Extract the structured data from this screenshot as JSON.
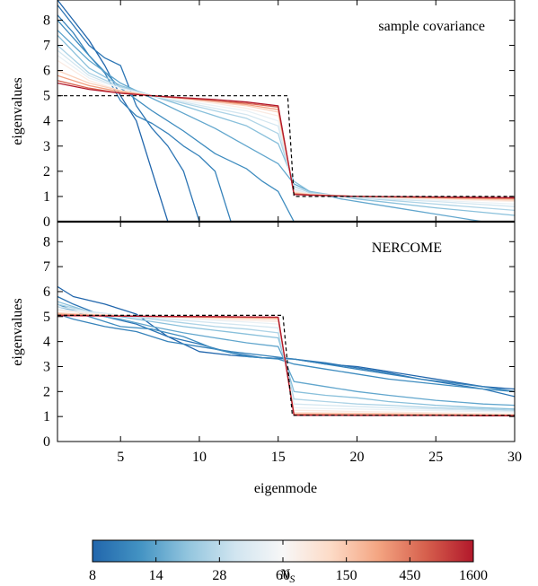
{
  "chart_data": [
    {
      "type": "line",
      "panel": "top",
      "annotation": "sample covariance",
      "ylabel": "eigenvalues",
      "xlim": [
        1,
        30
      ],
      "ylim": [
        0,
        8.8
      ],
      "yticks": [
        0,
        1,
        2,
        3,
        4,
        5,
        6,
        7,
        8
      ],
      "reference": {
        "name": "true",
        "x": [
          1,
          15.6,
          15.6,
          16,
          16,
          30
        ],
        "y": [
          5,
          5,
          5,
          1,
          1,
          1
        ]
      },
      "series": [
        {
          "ns": 8,
          "x": [
            1,
            2,
            3,
            4,
            5,
            6,
            7,
            8
          ],
          "y": [
            8.8,
            8.0,
            7.2,
            6.2,
            5.0,
            4.0,
            2.0,
            0.0
          ]
        },
        {
          "ns": 10,
          "x": [
            1,
            2,
            3,
            4,
            5,
            6,
            7,
            8,
            9,
            10
          ],
          "y": [
            8.6,
            7.8,
            7.0,
            6.5,
            6.2,
            4.6,
            3.7,
            3.0,
            2.0,
            0.0
          ]
        },
        {
          "ns": 12,
          "x": [
            1,
            2,
            3,
            4,
            5,
            6,
            7,
            8,
            9,
            10,
            11,
            12
          ],
          "y": [
            8.2,
            7.5,
            6.6,
            5.9,
            4.8,
            4.2,
            3.9,
            3.5,
            3.0,
            2.6,
            2.0,
            0.0
          ]
        },
        {
          "ns": 14,
          "x": [
            1,
            3,
            5,
            7,
            9,
            11,
            13,
            14,
            15,
            16
          ],
          "y": [
            8.0,
            6.6,
            5.3,
            4.4,
            3.6,
            2.7,
            2.1,
            1.6,
            1.2,
            0.0
          ]
        },
        {
          "ns": 20,
          "x": [
            1,
            3,
            5,
            7,
            9,
            11,
            13,
            15,
            16,
            17,
            19,
            22,
            25,
            28
          ],
          "y": [
            7.6,
            6.4,
            5.5,
            4.9,
            4.3,
            3.7,
            3.0,
            2.3,
            1.5,
            1.2,
            0.9,
            0.6,
            0.3,
            0.0
          ]
        },
        {
          "ns": 28,
          "x": [
            1,
            3,
            5,
            7,
            9,
            11,
            13,
            15,
            16,
            17,
            20,
            25,
            30
          ],
          "y": [
            7.4,
            6.1,
            5.4,
            5.0,
            4.6,
            4.2,
            3.8,
            3.1,
            1.6,
            1.2,
            0.9,
            0.55,
            0.25
          ]
        },
        {
          "ns": 40,
          "x": [
            1,
            3,
            5,
            7,
            9,
            11,
            13,
            15,
            16,
            17,
            20,
            25,
            30
          ],
          "y": [
            7.0,
            5.9,
            5.35,
            5.0,
            4.7,
            4.4,
            4.1,
            3.5,
            1.4,
            1.15,
            0.95,
            0.7,
            0.45
          ]
        },
        {
          "ns": 60,
          "x": [
            1,
            3,
            5,
            7,
            9,
            11,
            13,
            15,
            16,
            17,
            20,
            25,
            30
          ],
          "y": [
            6.8,
            5.8,
            5.3,
            5.0,
            4.75,
            4.5,
            4.25,
            3.8,
            1.3,
            1.1,
            0.95,
            0.8,
            0.6
          ]
        },
        {
          "ns": 90,
          "x": [
            1,
            3,
            5,
            7,
            9,
            11,
            13,
            15,
            16,
            17,
            20,
            25,
            30
          ],
          "y": [
            6.6,
            5.7,
            5.3,
            5.0,
            4.8,
            4.6,
            4.4,
            4.0,
            1.25,
            1.1,
            1.0,
            0.85,
            0.7
          ]
        },
        {
          "ns": 150,
          "x": [
            1,
            3,
            5,
            7,
            9,
            11,
            13,
            15,
            16,
            17,
            20,
            25,
            30
          ],
          "y": [
            6.4,
            5.6,
            5.2,
            5.0,
            4.85,
            4.7,
            4.5,
            4.2,
            1.2,
            1.1,
            1.0,
            0.9,
            0.8
          ]
        },
        {
          "ns": 250,
          "x": [
            1,
            3,
            5,
            7,
            9,
            11,
            13,
            15,
            16,
            17,
            20,
            25,
            30
          ],
          "y": [
            6.0,
            5.5,
            5.2,
            5.0,
            4.9,
            4.75,
            4.6,
            4.35,
            1.15,
            1.08,
            1.0,
            0.93,
            0.85
          ]
        },
        {
          "ns": 450,
          "x": [
            1,
            3,
            5,
            7,
            9,
            11,
            13,
            15,
            16,
            17,
            20,
            25,
            30
          ],
          "y": [
            5.8,
            5.4,
            5.15,
            5.0,
            4.9,
            4.8,
            4.65,
            4.45,
            1.12,
            1.07,
            1.0,
            0.95,
            0.9
          ]
        },
        {
          "ns": 800,
          "x": [
            1,
            3,
            5,
            7,
            9,
            11,
            13,
            15,
            16,
            17,
            20,
            25,
            30
          ],
          "y": [
            5.6,
            5.3,
            5.1,
            5.0,
            4.9,
            4.8,
            4.7,
            4.55,
            1.1,
            1.06,
            1.0,
            0.97,
            0.93
          ]
        },
        {
          "ns": 1600,
          "x": [
            1,
            3,
            5,
            7,
            9,
            11,
            13,
            15,
            16,
            17,
            20,
            25,
            30
          ],
          "y": [
            5.5,
            5.25,
            5.1,
            5.0,
            4.92,
            4.85,
            4.75,
            4.6,
            1.08,
            1.05,
            1.0,
            0.98,
            0.95
          ]
        }
      ]
    },
    {
      "type": "line",
      "panel": "bottom",
      "annotation": "NERCOME",
      "xlabel": "eigenmode",
      "ylabel": "eigenvalues",
      "xlim": [
        1,
        30
      ],
      "ylim": [
        0,
        8.8
      ],
      "xticks": [
        5,
        10,
        15,
        20,
        25,
        30
      ],
      "yticks": [
        0,
        1,
        2,
        3,
        4,
        5,
        6,
        7,
        8
      ],
      "reference": {
        "name": "true",
        "x": [
          1,
          15.3,
          15.3,
          15.9,
          15.9,
          30
        ],
        "y": [
          5.05,
          5.05,
          5.05,
          1.05,
          1.05,
          1.05
        ]
      },
      "series": [
        {
          "ns": 8,
          "x": [
            1,
            2,
            4,
            6,
            8,
            10,
            12,
            14,
            16,
            18,
            20,
            22,
            24,
            26,
            28,
            30
          ],
          "y": [
            6.2,
            5.8,
            5.5,
            5.1,
            4.2,
            3.6,
            3.45,
            3.35,
            3.3,
            3.1,
            3.0,
            2.8,
            2.6,
            2.4,
            2.2,
            2.1
          ]
        },
        {
          "ns": 10,
          "x": [
            1,
            2,
            4,
            6,
            8,
            10,
            12,
            14,
            16,
            18,
            20,
            22,
            24,
            26,
            28,
            30
          ],
          "y": [
            5.8,
            5.5,
            5.0,
            4.7,
            4.2,
            3.9,
            3.55,
            3.35,
            3.3,
            3.15,
            2.95,
            2.75,
            2.5,
            2.3,
            2.1,
            1.8
          ]
        },
        {
          "ns": 12,
          "x": [
            1,
            2,
            4,
            6,
            8,
            10,
            12,
            14,
            16,
            18,
            20,
            22,
            24,
            26,
            28,
            30
          ],
          "y": [
            5.1,
            4.9,
            4.6,
            4.4,
            4.0,
            3.8,
            3.6,
            3.45,
            3.3,
            3.1,
            2.9,
            2.7,
            2.5,
            2.35,
            2.2,
            2.0
          ]
        },
        {
          "ns": 14,
          "x": [
            1,
            3,
            5,
            7,
            9,
            11,
            13,
            15,
            16,
            18,
            20,
            22,
            25,
            28,
            30
          ],
          "y": [
            5.5,
            5.0,
            4.6,
            4.5,
            4.2,
            3.7,
            3.4,
            3.3,
            3.1,
            2.9,
            2.7,
            2.5,
            2.3,
            2.1,
            2.0
          ]
        },
        {
          "ns": 20,
          "x": [
            1,
            3,
            5,
            7,
            9,
            11,
            13,
            15,
            16,
            18,
            20,
            22,
            25,
            28,
            30
          ],
          "y": [
            5.4,
            5.1,
            4.9,
            4.6,
            4.35,
            4.15,
            3.95,
            3.8,
            2.4,
            2.2,
            2.0,
            1.85,
            1.65,
            1.5,
            1.45
          ]
        },
        {
          "ns": 28,
          "x": [
            1,
            3,
            5,
            7,
            9,
            11,
            13,
            15,
            16,
            18,
            20,
            22,
            25,
            28,
            30
          ],
          "y": [
            5.6,
            5.2,
            5.0,
            4.8,
            4.6,
            4.45,
            4.3,
            4.15,
            2.0,
            1.85,
            1.75,
            1.6,
            1.45,
            1.35,
            1.3
          ]
        },
        {
          "ns": 40,
          "x": [
            1,
            3,
            5,
            7,
            9,
            11,
            13,
            15,
            16,
            18,
            20,
            22,
            25,
            28,
            30
          ],
          "y": [
            5.5,
            5.2,
            5.05,
            4.9,
            4.75,
            4.6,
            4.5,
            4.35,
            1.7,
            1.6,
            1.5,
            1.45,
            1.35,
            1.3,
            1.25
          ]
        },
        {
          "ns": 60,
          "x": [
            1,
            3,
            5,
            7,
            9,
            11,
            13,
            15,
            16,
            18,
            20,
            22,
            25,
            28,
            30
          ],
          "y": [
            5.4,
            5.2,
            5.05,
            4.95,
            4.85,
            4.75,
            4.65,
            4.55,
            1.5,
            1.45,
            1.4,
            1.35,
            1.3,
            1.25,
            1.2
          ]
        },
        {
          "ns": 90,
          "x": [
            1,
            3,
            5,
            7,
            9,
            11,
            13,
            15,
            16,
            18,
            20,
            22,
            25,
            28,
            30
          ],
          "y": [
            5.3,
            5.15,
            5.05,
            5.0,
            4.92,
            4.85,
            4.78,
            4.7,
            1.35,
            1.32,
            1.3,
            1.27,
            1.24,
            1.2,
            1.18
          ]
        },
        {
          "ns": 150,
          "x": [
            1,
            3,
            5,
            7,
            9,
            11,
            13,
            15,
            16,
            18,
            20,
            22,
            25,
            28,
            30
          ],
          "y": [
            5.25,
            5.12,
            5.05,
            5.0,
            4.95,
            4.9,
            4.85,
            4.8,
            1.25,
            1.23,
            1.2,
            1.18,
            1.15,
            1.12,
            1.1
          ]
        },
        {
          "ns": 250,
          "x": [
            1,
            3,
            5,
            7,
            9,
            11,
            13,
            15,
            16,
            18,
            20,
            22,
            25,
            28,
            30
          ],
          "y": [
            5.15,
            5.08,
            5.04,
            5.0,
            4.98,
            4.95,
            4.92,
            4.88,
            1.15,
            1.14,
            1.13,
            1.12,
            1.1,
            1.08,
            1.07
          ]
        },
        {
          "ns": 450,
          "x": [
            1,
            3,
            5,
            7,
            9,
            11,
            13,
            15,
            16,
            18,
            20,
            22,
            25,
            28,
            30
          ],
          "y": [
            5.1,
            5.06,
            5.03,
            5.01,
            5.0,
            4.98,
            4.96,
            4.94,
            1.1,
            1.09,
            1.08,
            1.08,
            1.07,
            1.06,
            1.05
          ]
        },
        {
          "ns": 800,
          "x": [
            1,
            3,
            5,
            7,
            9,
            11,
            13,
            15,
            16,
            18,
            20,
            22,
            25,
            28,
            30
          ],
          "y": [
            5.06,
            5.04,
            5.02,
            5.01,
            5.0,
            4.99,
            4.98,
            4.97,
            1.07,
            1.06,
            1.06,
            1.05,
            1.05,
            1.04,
            1.04
          ]
        },
        {
          "ns": 1600,
          "x": [
            1,
            3,
            5,
            7,
            9,
            11,
            13,
            15,
            16,
            18,
            20,
            22,
            25,
            28,
            30
          ],
          "y": [
            5.04,
            5.03,
            5.02,
            5.01,
            5.0,
            5.0,
            4.99,
            4.98,
            1.05,
            1.05,
            1.04,
            1.04,
            1.04,
            1.03,
            1.03
          ]
        }
      ]
    }
  ],
  "colorbar": {
    "label_main": "N",
    "label_sub": "S",
    "ticks": [
      8,
      14,
      28,
      60,
      150,
      450,
      1600
    ],
    "colors": [
      "#2166ac",
      "#4393c3",
      "#92c5de",
      "#d1e5f0",
      "#f7f7f7",
      "#fddbc7",
      "#f4a582",
      "#d6604d",
      "#b2182b"
    ]
  }
}
